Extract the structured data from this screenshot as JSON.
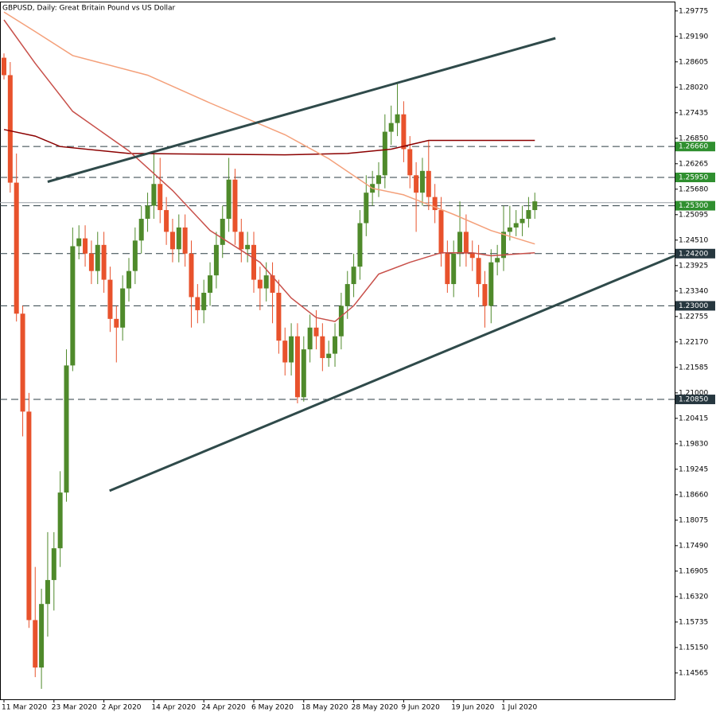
{
  "chart_data": {
    "type": "candlestick",
    "title": "GBPUSD, Daily:  Great Britain Pound vs US Dollar",
    "categories": [
      "11 Mar 2020",
      null,
      null,
      null,
      null,
      null,
      null,
      null,
      "23 Mar 2020",
      null,
      null,
      null,
      null,
      null,
      null,
      null,
      "2 Apr 2020",
      null,
      null,
      null,
      null,
      null,
      null,
      null,
      "14 Apr 2020",
      null,
      null,
      null,
      null,
      null,
      null,
      null,
      "24 Apr 2020",
      null,
      null,
      null,
      null,
      null,
      null,
      null,
      "6 May 2020",
      null,
      null,
      null,
      null,
      null,
      null,
      null,
      "18 May 2020",
      null,
      null,
      null,
      null,
      null,
      null,
      null,
      "28 May 2020",
      null,
      null,
      null,
      null,
      null,
      null,
      null,
      "9 Jun 2020",
      null,
      null,
      null,
      null,
      null,
      null,
      null,
      "19 Jun 2020",
      null,
      null,
      null,
      null,
      null,
      null,
      null,
      "1 Jul 2020",
      null,
      null,
      null,
      null,
      null
    ],
    "open": [
      1.287,
      1.283,
      1.2583,
      1.2282,
      1.2057,
      1.1578,
      1.1469,
      1.1615,
      1.167,
      1.1743,
      1.1871,
      1.2163,
      1.2437,
      1.2455,
      1.242,
      1.238,
      1.244,
      1.236,
      1.227,
      1.225,
      1.234,
      1.238,
      1.245,
      1.25,
      1.253,
      1.258,
      1.252,
      1.247,
      1.243,
      1.248,
      1.242,
      1.232,
      1.229,
      1.233,
      1.237,
      1.244,
      1.25,
      1.259,
      1.247,
      1.243,
      1.244,
      1.236,
      1.234,
      1.237,
      1.233,
      1.222,
      1.217,
      1.223,
      1.209,
      1.22,
      1.225,
      1.223,
      1.218,
      1.219,
      1.223,
      1.23,
      1.235,
      1.239,
      1.249,
      1.256,
      1.258,
      1.26,
      1.27,
      1.272,
      1.274,
      1.266,
      1.26,
      1.256,
      1.261,
      1.255,
      1.252,
      1.242,
      1.235,
      1.242,
      1.247,
      1.242,
      1.241,
      1.235,
      1.23,
      1.24,
      1.241,
      1.247,
      1.248,
      1.249,
      1.25,
      1.252
    ],
    "high": [
      1.288,
      1.286,
      1.265,
      1.23,
      1.21,
      1.17,
      1.165,
      1.178,
      1.178,
      1.192,
      1.22,
      1.248,
      1.2485,
      1.2485,
      1.245,
      1.247,
      1.247,
      1.239,
      1.23,
      1.237,
      1.241,
      1.248,
      1.253,
      1.256,
      1.265,
      1.264,
      1.255,
      1.25,
      1.251,
      1.251,
      1.245,
      1.235,
      1.236,
      1.24,
      1.247,
      1.253,
      1.264,
      1.2615,
      1.25,
      1.247,
      1.247,
      1.239,
      1.24,
      1.24,
      1.236,
      1.225,
      1.226,
      1.226,
      1.223,
      1.228,
      1.229,
      1.226,
      1.222,
      1.226,
      1.233,
      1.238,
      1.242,
      1.252,
      1.26,
      1.261,
      1.263,
      1.274,
      1.276,
      1.2812,
      1.277,
      1.269,
      1.263,
      1.264,
      1.268,
      1.258,
      1.255,
      1.245,
      1.245,
      1.254,
      1.251,
      1.245,
      1.244,
      1.238,
      1.243,
      1.244,
      1.253,
      1.253,
      1.252,
      1.253,
      1.255,
      1.256
    ],
    "low": [
      1.282,
      1.256,
      1.2264,
      1.2,
      1.156,
      1.1447,
      1.142,
      1.154,
      1.16,
      1.17,
      1.185,
      1.215,
      1.2407,
      1.239,
      1.235,
      1.235,
      1.233,
      1.224,
      1.217,
      1.222,
      1.231,
      1.235,
      1.242,
      1.247,
      1.25,
      1.249,
      1.244,
      1.24,
      1.24,
      1.239,
      1.225,
      1.226,
      1.226,
      1.23,
      1.234,
      1.241,
      1.247,
      1.244,
      1.24,
      1.24,
      1.233,
      1.229,
      1.231,
      1.226,
      1.219,
      1.214,
      1.214,
      1.2076,
      1.208,
      1.217,
      1.22,
      1.215,
      1.216,
      1.216,
      1.22,
      1.227,
      1.232,
      1.236,
      1.246,
      1.253,
      1.255,
      1.257,
      1.267,
      1.269,
      1.263,
      1.257,
      1.247,
      1.253,
      1.252,
      1.249,
      1.239,
      1.233,
      1.232,
      1.239,
      1.239,
      1.238,
      1.232,
      1.225,
      1.226,
      1.237,
      1.238,
      1.245,
      1.246,
      1.246,
      1.248,
      1.25
    ],
    "close": [
      1.283,
      1.2583,
      1.2282,
      1.2057,
      1.1578,
      1.1469,
      1.1615,
      1.167,
      1.1743,
      1.1871,
      1.2163,
      1.2437,
      1.2455,
      1.242,
      1.238,
      1.244,
      1.236,
      1.227,
      1.225,
      1.234,
      1.238,
      1.245,
      1.25,
      1.253,
      1.258,
      1.252,
      1.247,
      1.243,
      1.248,
      1.242,
      1.232,
      1.229,
      1.233,
      1.237,
      1.244,
      1.25,
      1.259,
      1.247,
      1.243,
      1.244,
      1.236,
      1.234,
      1.237,
      1.233,
      1.222,
      1.217,
      1.223,
      1.209,
      1.22,
      1.225,
      1.223,
      1.218,
      1.219,
      1.223,
      1.23,
      1.235,
      1.239,
      1.249,
      1.256,
      1.258,
      1.26,
      1.27,
      1.272,
      1.274,
      1.266,
      1.26,
      1.256,
      1.261,
      1.255,
      1.252,
      1.242,
      1.235,
      1.242,
      1.247,
      1.242,
      1.241,
      1.235,
      1.23,
      1.24,
      1.241,
      1.247,
      1.248,
      1.249,
      1.25,
      1.252,
      1.254
    ],
    "up_color": "#4f8a2b",
    "down_color": "#e8522c",
    "ylim": [
      1.1396,
      1.2999
    ],
    "yticks": [
      1.29775,
      {
        "value": 1.2919,
        "label": "1.29190"
      },
      1.28605,
      {
        "value": 1.2802,
        "label": "1.28020"
      },
      1.27435,
      {
        "value": 1.2685,
        "label": "1.26850"
      },
      1.26265,
      {
        "value": 1.2568,
        "label": "1.25680"
      },
      1.25095,
      {
        "value": 1.2451,
        "label": "1.24510"
      },
      1.23925,
      {
        "value": 1.2334,
        "label": "1.23340"
      },
      1.22755,
      {
        "value": 1.2217,
        "label": "1.22170"
      },
      1.21585,
      {
        "value": 1.21,
        "label": "1.21000"
      },
      1.20415,
      {
        "value": 1.1983,
        "label": "1.19830"
      },
      1.19245,
      {
        "value": 1.1866,
        "label": "1.18660"
      },
      1.18075,
      {
        "value": 1.1749,
        "label": "1.17490"
      },
      1.16905,
      {
        "value": 1.1632,
        "label": "1.16320"
      },
      1.15735,
      {
        "value": 1.1515,
        "label": "1.15150"
      },
      1.14565
    ],
    "overlays": [
      {
        "color": "#8b0000",
        "x": [
          0,
          5,
          9,
          20,
          45,
          55,
          62,
          68,
          85
        ],
        "values": [
          1.2705,
          1.269,
          1.2666,
          1.265,
          1.2647,
          1.265,
          1.266,
          1.268,
          1.268
        ]
      },
      {
        "color": "#f4a07a",
        "x": [
          0,
          5,
          11,
          23,
          33,
          45,
          52,
          59,
          64,
          72,
          78,
          85
        ],
        "values": [
          1.2975,
          1.293,
          1.2875,
          1.283,
          1.2766,
          1.2693,
          1.2638,
          1.257,
          1.2555,
          1.251,
          1.2473,
          1.2442
        ]
      },
      {
        "color": "#c8504a",
        "x": [
          0,
          5,
          11,
          20,
          27,
          33,
          41,
          46,
          50,
          53,
          56,
          60,
          65,
          70,
          75,
          78,
          85
        ],
        "values": [
          1.2957,
          1.2857,
          1.2747,
          1.2656,
          1.2565,
          1.2473,
          1.24,
          1.2318,
          1.2273,
          1.2264,
          1.23,
          1.2373,
          1.24,
          1.2422,
          1.2422,
          1.2415,
          1.2422
        ]
      }
    ],
    "trendlines": [
      {
        "color": "#2f4a4a",
        "x": [
          7.0,
          88.3
        ],
        "values": [
          1.2585,
          1.2915
        ]
      },
      {
        "color": "#2f4a4a",
        "x": [
          16.9,
          107.4
        ],
        "values": [
          1.1875,
          1.2415
        ]
      }
    ],
    "levels": [
      {
        "value": 1.2666,
        "label": "1.26660",
        "color": "#2f8f2f"
      },
      {
        "value": 1.2595,
        "label": "1.25950",
        "color": "#2f8f2f"
      },
      {
        "value": 1.253,
        "label": "1.25300",
        "color": "#2f8f2f"
      },
      {
        "value": 1.242,
        "label": "1.24200",
        "color": "#26373f"
      },
      {
        "value": 1.23,
        "label": "1.23000",
        "color": "#26373f"
      },
      {
        "value": 1.2085,
        "label": "1.20850",
        "color": "#26373f"
      }
    ],
    "last_price": 1.2537
  }
}
